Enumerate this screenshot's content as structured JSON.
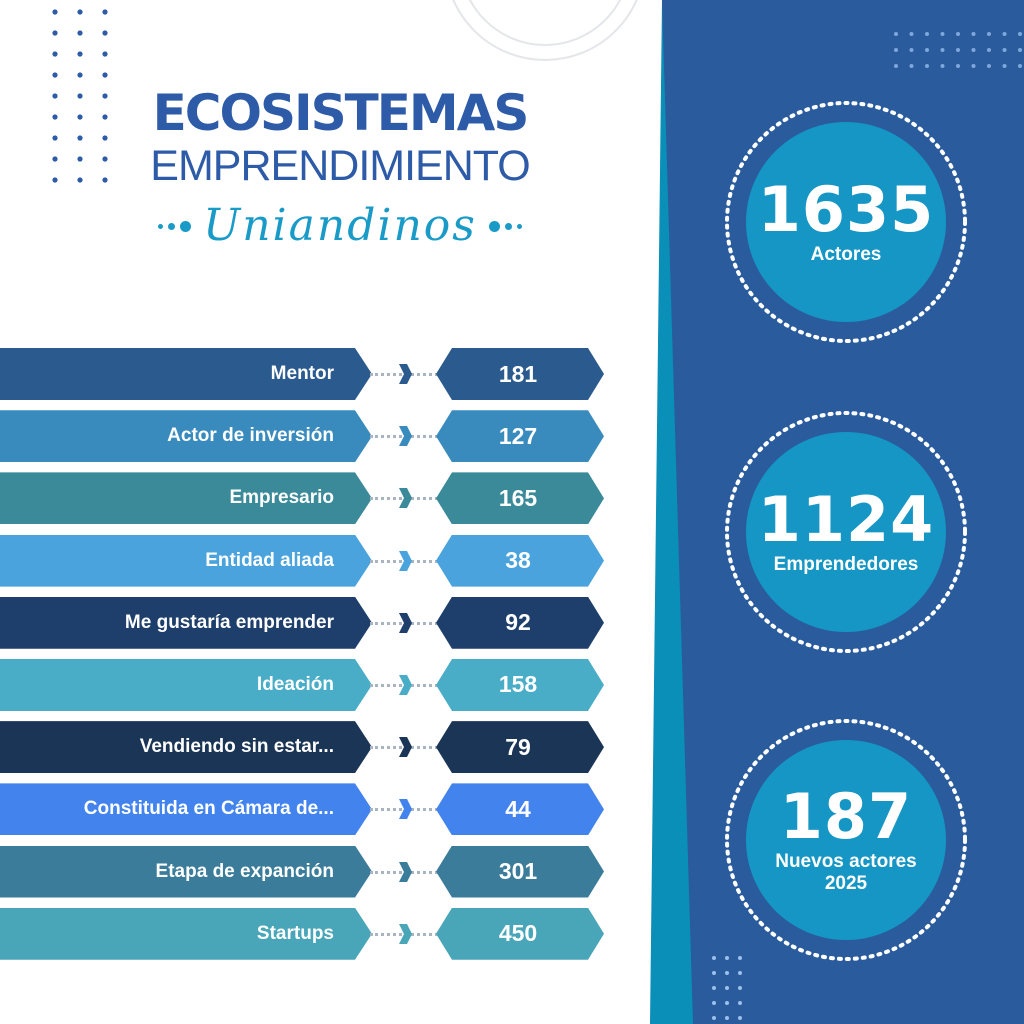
{
  "colors": {
    "panel_blue": "#2a5b9d",
    "accent_teal": "#0a8fb8",
    "circle_fill": "#1596c4",
    "title_blue": "#2d5ba8",
    "script_teal": "#1a9bc7"
  },
  "header": {
    "line1": "ECOSISTEMAS",
    "line2": "EMPRENDIMIENTO",
    "script": "Uniandinos"
  },
  "categories": [
    {
      "label": "Mentor",
      "value": "181",
      "color": "#2a5a8e"
    },
    {
      "label": "Actor de inversión",
      "value": "127",
      "color": "#3a8bbd"
    },
    {
      "label": "Empresario",
      "value": "165",
      "color": "#3a8a9a"
    },
    {
      "label": "Entidad aliada",
      "value": "38",
      "color": "#4aa3dc"
    },
    {
      "label": "Me gustaría emprender",
      "value": "92",
      "color": "#1e3f6b"
    },
    {
      "label": "Ideación",
      "value": "158",
      "color": "#4aadc8"
    },
    {
      "label": "Vendiendo sin estar...",
      "value": "79",
      "color": "#1a3555"
    },
    {
      "label": "Constituida en Cámara de...",
      "value": "44",
      "color": "#4283ee"
    },
    {
      "label": "Etapa de expanción",
      "value": "301",
      "color": "#3a7c9a"
    },
    {
      "label": "Startups",
      "value": "450",
      "color": "#49a5b8"
    }
  ],
  "stats": [
    {
      "number": "1635",
      "label": "Actores"
    },
    {
      "number": "1124",
      "label": "Emprendedores"
    },
    {
      "number": "187",
      "label": "Nuevos actores 2025"
    }
  ]
}
